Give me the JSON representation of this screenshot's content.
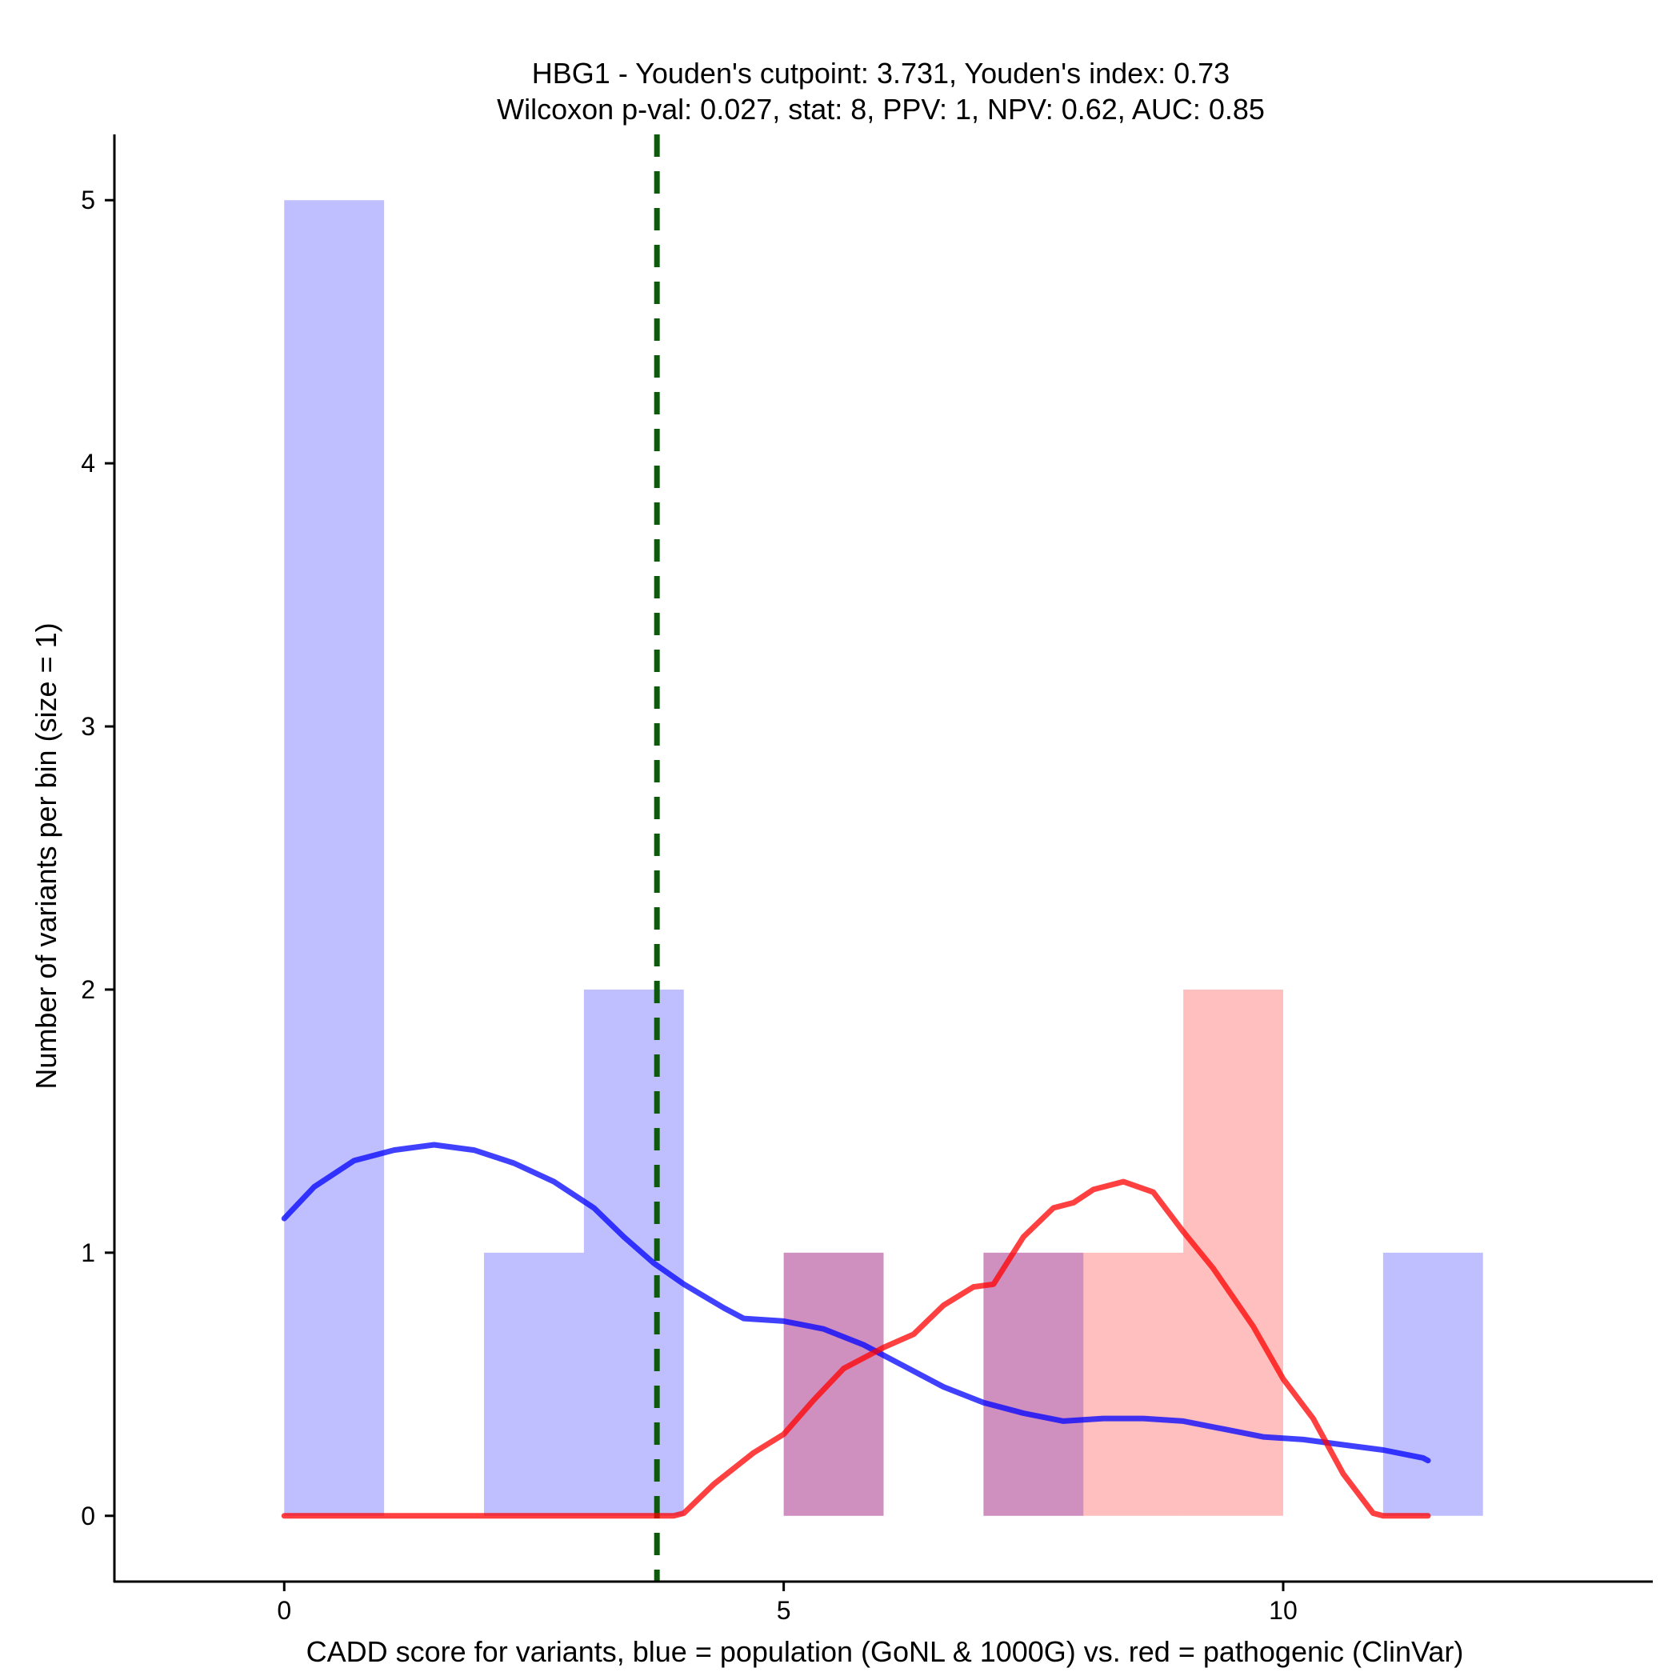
{
  "chart_data": {
    "type": "bar",
    "title_line1": "HBG1 - Youden's cutpoint: 3.731, Youden's index: 0.73",
    "title_line2": "Wilcoxon p-val: 0.027, stat: 8, PPV: 1, NPV: 0.62, AUC: 0.85",
    "xlabel": "CADD score for variants, blue = population (GoNL & 1000G) vs. red = pathogenic (ClinVar)",
    "ylabel": "Number of variants per bin (size = 1)",
    "xlim": [
      -1.7,
      13.7
    ],
    "ylim": [
      -0.25,
      5.25
    ],
    "x_ticks": [
      0,
      5,
      10
    ],
    "y_ticks": [
      0,
      1,
      2,
      3,
      4,
      5
    ],
    "bin_width": 1,
    "series": [
      {
        "name": "population (GoNL & 1000G)",
        "color": "#0000ff",
        "bins": [
          {
            "x": 0,
            "count": 5
          },
          {
            "x": 2,
            "count": 1
          },
          {
            "x": 3,
            "count": 2
          },
          {
            "x": 5,
            "count": 1
          },
          {
            "x": 7,
            "count": 1
          },
          {
            "x": 11,
            "count": 1
          }
        ],
        "density_curve": [
          [
            0,
            1.13
          ],
          [
            0.3,
            1.25
          ],
          [
            0.7,
            1.35
          ],
          [
            1.1,
            1.39
          ],
          [
            1.5,
            1.41
          ],
          [
            1.9,
            1.39
          ],
          [
            2.3,
            1.34
          ],
          [
            2.7,
            1.27
          ],
          [
            3.1,
            1.17
          ],
          [
            3.4,
            1.06
          ],
          [
            3.7,
            0.96
          ],
          [
            4.0,
            0.88
          ],
          [
            4.4,
            0.79
          ],
          [
            4.6,
            0.75
          ],
          [
            5.0,
            0.74
          ],
          [
            5.4,
            0.71
          ],
          [
            5.8,
            0.65
          ],
          [
            6.2,
            0.57
          ],
          [
            6.6,
            0.49
          ],
          [
            7.0,
            0.43
          ],
          [
            7.4,
            0.39
          ],
          [
            7.8,
            0.36
          ],
          [
            8.2,
            0.37
          ],
          [
            8.6,
            0.37
          ],
          [
            9.0,
            0.36
          ],
          [
            9.4,
            0.33
          ],
          [
            9.8,
            0.3
          ],
          [
            10.2,
            0.29
          ],
          [
            10.6,
            0.27
          ],
          [
            11.0,
            0.25
          ],
          [
            11.4,
            0.22
          ],
          [
            11.45,
            0.21
          ]
        ]
      },
      {
        "name": "pathogenic (ClinVar)",
        "color": "#ff0000",
        "bins": [
          {
            "x": 5,
            "count": 1
          },
          {
            "x": 7,
            "count": 1
          },
          {
            "x": 8,
            "count": 1
          },
          {
            "x": 9,
            "count": 2
          }
        ],
        "density_curve": [
          [
            0,
            0
          ],
          [
            1,
            0
          ],
          [
            2,
            0
          ],
          [
            3,
            0
          ],
          [
            3.9,
            0
          ],
          [
            4.0,
            0.01
          ],
          [
            4.3,
            0.12
          ],
          [
            4.7,
            0.24
          ],
          [
            5.0,
            0.31
          ],
          [
            5.3,
            0.44
          ],
          [
            5.6,
            0.56
          ],
          [
            6.0,
            0.64
          ],
          [
            6.3,
            0.69
          ],
          [
            6.6,
            0.8
          ],
          [
            6.9,
            0.87
          ],
          [
            7.1,
            0.88
          ],
          [
            7.4,
            1.06
          ],
          [
            7.7,
            1.17
          ],
          [
            7.9,
            1.19
          ],
          [
            8.1,
            1.24
          ],
          [
            8.4,
            1.27
          ],
          [
            8.7,
            1.23
          ],
          [
            9.0,
            1.08
          ],
          [
            9.3,
            0.94
          ],
          [
            9.7,
            0.72
          ],
          [
            10.0,
            0.52
          ],
          [
            10.3,
            0.37
          ],
          [
            10.6,
            0.16
          ],
          [
            10.9,
            0.01
          ],
          [
            11.0,
            0
          ],
          [
            11.45,
            0
          ]
        ]
      }
    ],
    "cutpoint": {
      "x": 3.731,
      "color": "#0d5a0d"
    }
  }
}
